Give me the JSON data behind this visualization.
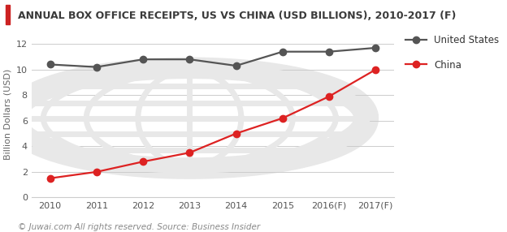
{
  "title": "ANNUAL BOX OFFICE RECEIPTS, US VS CHINA (USD BILLIONS), 2010-2017 (F)",
  "title_color": "#3a3a3a",
  "title_fontsize": 9.0,
  "ylabel": "Billion Dollars (USD)",
  "ylabel_fontsize": 8.0,
  "caption": "© Juwai.com All rights reserved. Source: Business Insider",
  "caption_fontsize": 7.5,
  "x_labels": [
    "2010",
    "2011",
    "2012",
    "2013",
    "2014",
    "2015",
    "2016(F)",
    "2017(F)"
  ],
  "x_values": [
    0,
    1,
    2,
    3,
    4,
    5,
    6,
    7
  ],
  "us_values": [
    10.4,
    10.2,
    10.8,
    10.8,
    10.3,
    11.4,
    11.4,
    11.7
  ],
  "china_values": [
    1.5,
    2.0,
    2.8,
    3.5,
    5.0,
    6.2,
    7.9,
    10.0
  ],
  "us_color": "#555555",
  "china_color": "#dd2222",
  "us_label": "United States",
  "china_label": "China",
  "ylim": [
    0,
    13
  ],
  "yticks": [
    0,
    2,
    4,
    6,
    8,
    10,
    12
  ],
  "grid_color": "#cccccc",
  "background_color": "#ffffff",
  "title_bar_color": "#cc2222",
  "watermark_color": "#e8e8e8",
  "marker_size": 6,
  "linewidth": 1.6,
  "legend_fontsize": 8.5
}
